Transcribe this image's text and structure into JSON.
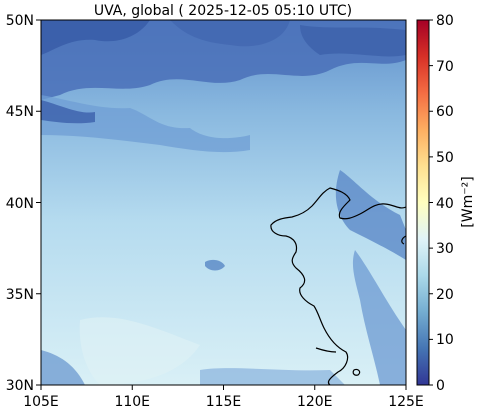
{
  "title": "UVA, global ( 2025-12-05 05:10 UTC)",
  "map": {
    "lon_range": [
      105,
      125
    ],
    "lat_range": [
      30,
      50
    ],
    "x_ticks": [
      "105E",
      "110E",
      "115E",
      "120E",
      "125E"
    ],
    "y_ticks": [
      "30N",
      "35N",
      "40N",
      "45N",
      "50N"
    ]
  },
  "colorbar": {
    "label": "[Wm⁻²]",
    "min": 0,
    "max": 80,
    "ticks": [
      "0",
      "10",
      "20",
      "30",
      "40",
      "50",
      "60",
      "70",
      "80"
    ],
    "colormap": "RdYlBu_r",
    "stops": [
      "#313695",
      "#4575b4",
      "#74add1",
      "#abd9e9",
      "#e0f3f8",
      "#ffffbf",
      "#fee090",
      "#fdae61",
      "#f46d43",
      "#d73027",
      "#a50026"
    ]
  },
  "colors": {
    "field_low": "#3c63b0",
    "field_mid": "#8fbce0",
    "field_high": "#d2ecf5",
    "coastline": "#000000"
  }
}
